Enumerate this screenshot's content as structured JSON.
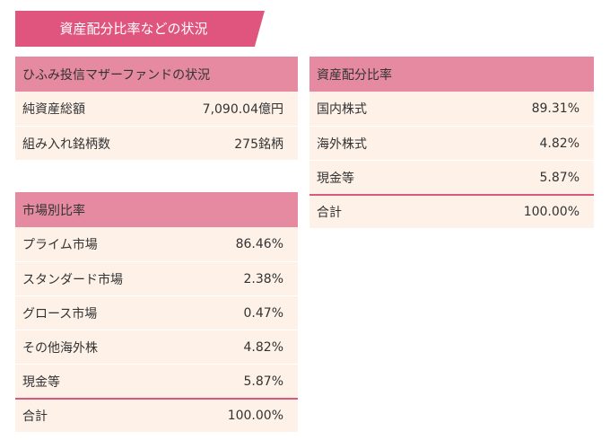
{
  "banner": {
    "title": "資産配分比率などの状況"
  },
  "fund_status": {
    "header": "ひふみ投信マザーファンドの状況",
    "rows": [
      {
        "label": "純資産総額",
        "value": "7,090.04億円"
      },
      {
        "label": "組み入れ銘柄数",
        "value": "275銘柄"
      }
    ]
  },
  "asset_allocation": {
    "header": "資産配分比率",
    "rows": [
      {
        "label": "国内株式",
        "value": "89.31%"
      },
      {
        "label": "海外株式",
        "value": "4.82%"
      },
      {
        "label": "現金等",
        "value": "5.87%"
      }
    ],
    "total": {
      "label": "合計",
      "value": "100.00%"
    }
  },
  "market_ratio": {
    "header": "市場別比率",
    "rows": [
      {
        "label": "プライム市場",
        "value": "86.46%"
      },
      {
        "label": "スタンダード市場",
        "value": "2.38%"
      },
      {
        "label": "グロース市場",
        "value": "0.47%"
      },
      {
        "label": "その他海外株",
        "value": "4.82%"
      },
      {
        "label": "現金等",
        "value": "5.87%"
      }
    ],
    "total": {
      "label": "合計",
      "value": "100.00%"
    }
  },
  "colors": {
    "banner": "#e0557e",
    "table_header": "#e58aa0",
    "row_background": "#fdf1e8",
    "total_divider": "#d85a7e"
  }
}
